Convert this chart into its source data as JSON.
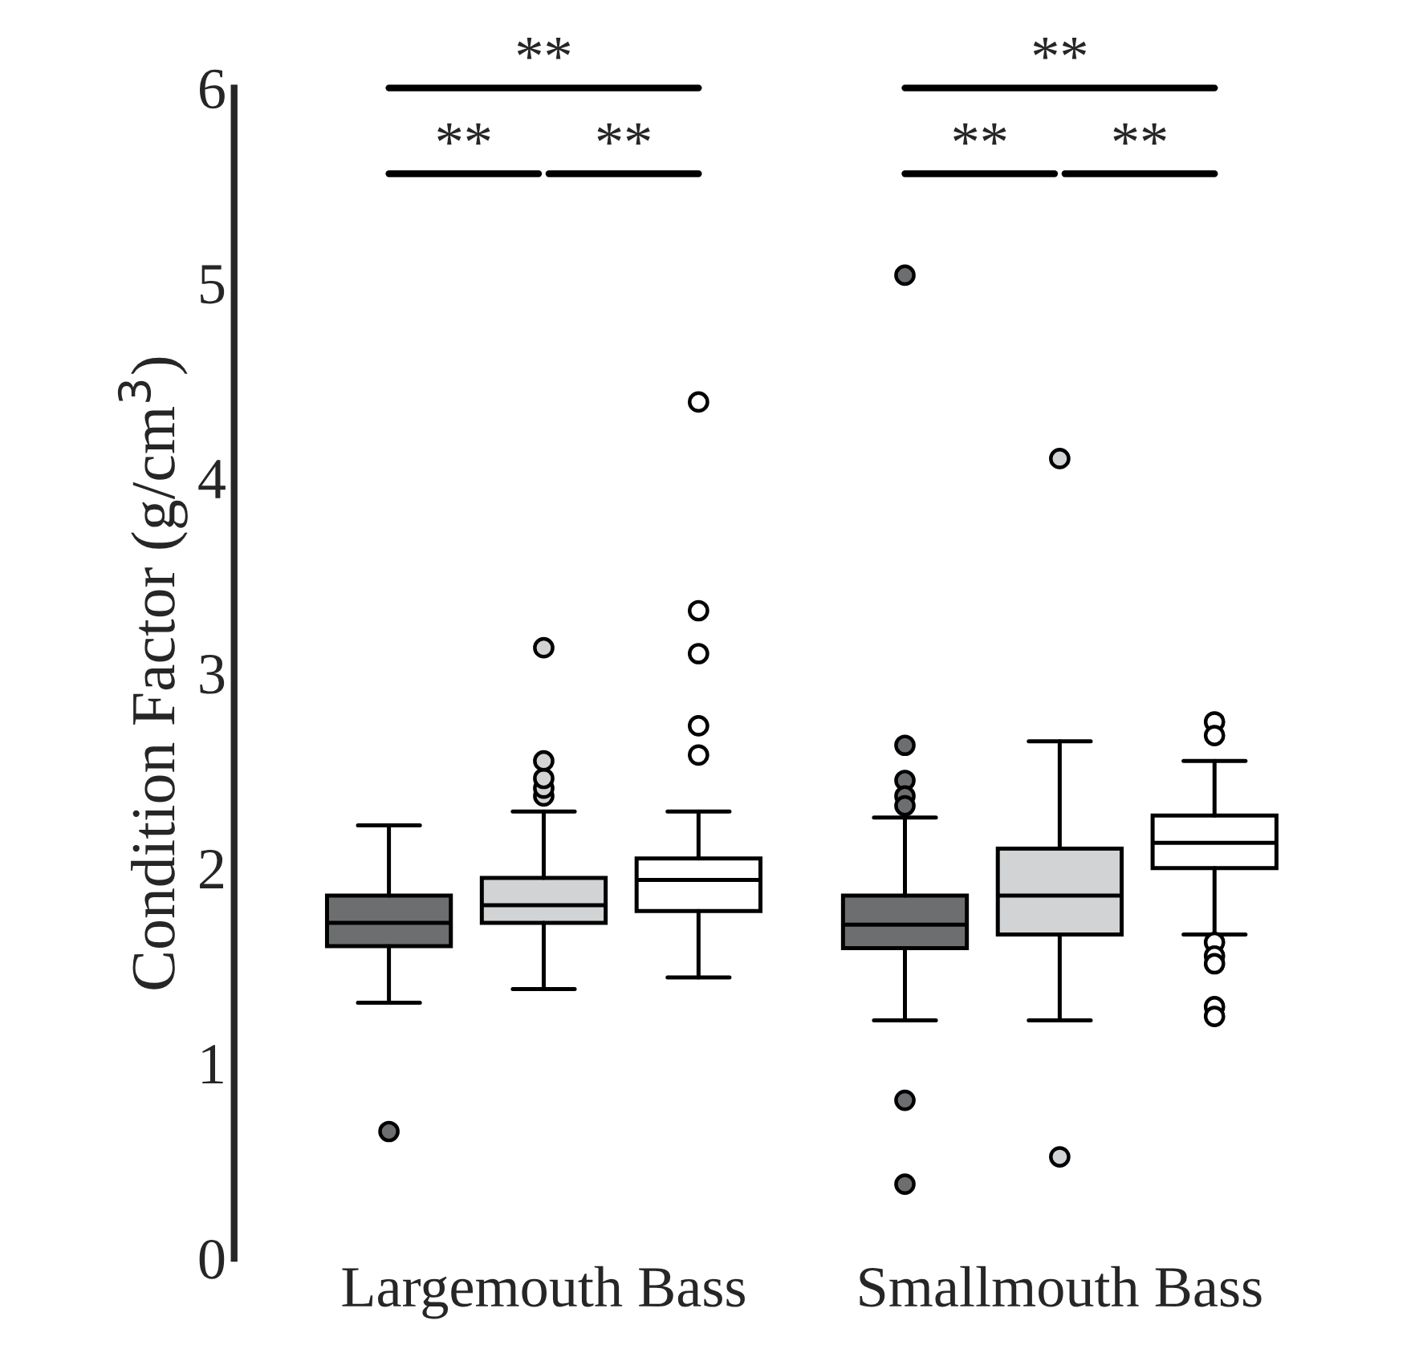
{
  "chart_data": {
    "type": "box",
    "ylabel": "Condition Factor (g/cm$^{3}$)",
    "categories": [
      "Largemouth Bass",
      "Smallmouth Bass"
    ],
    "ylim": [
      0,
      6
    ],
    "yticks": [
      0,
      1,
      2,
      3,
      4,
      5,
      6
    ],
    "grid": false,
    "series": [
      {
        "color": "#6d6e70",
        "boxes": [
          {
            "low": 1.31,
            "q1": 1.6,
            "median": 1.72,
            "q3": 1.86,
            "high": 2.22,
            "outliers": [
              0.65
            ]
          },
          {
            "low": 1.22,
            "q1": 1.59,
            "median": 1.71,
            "q3": 1.86,
            "high": 2.26,
            "outliers": [
              5.04,
              2.63,
              2.45,
              2.37,
              2.32,
              0.81,
              0.38
            ]
          }
        ]
      },
      {
        "color": "#d1d3d4",
        "boxes": [
          {
            "low": 1.38,
            "q1": 1.72,
            "median": 1.81,
            "q3": 1.95,
            "high": 2.29,
            "outliers": [
              2.37,
              2.41,
              2.46,
              2.55,
              3.13
            ]
          },
          {
            "low": 1.22,
            "q1": 1.66,
            "median": 1.86,
            "q3": 2.1,
            "high": 2.65,
            "outliers": [
              4.1,
              0.52
            ]
          }
        ]
      },
      {
        "color": "#ffffff",
        "boxes": [
          {
            "low": 1.44,
            "q1": 1.78,
            "median": 1.94,
            "q3": 2.05,
            "high": 2.29,
            "outliers": [
              2.58,
              2.73,
              3.1,
              3.32,
              4.39
            ]
          },
          {
            "low": 1.66,
            "q1": 2.0,
            "median": 2.13,
            "q3": 2.27,
            "high": 2.55,
            "outliers": [
              2.75,
              2.68,
              1.62,
              1.55,
              1.51,
              1.29,
              1.24
            ]
          }
        ]
      }
    ],
    "annotations": [
      "**",
      "**",
      "**",
      "**",
      "**",
      "**"
    ]
  }
}
